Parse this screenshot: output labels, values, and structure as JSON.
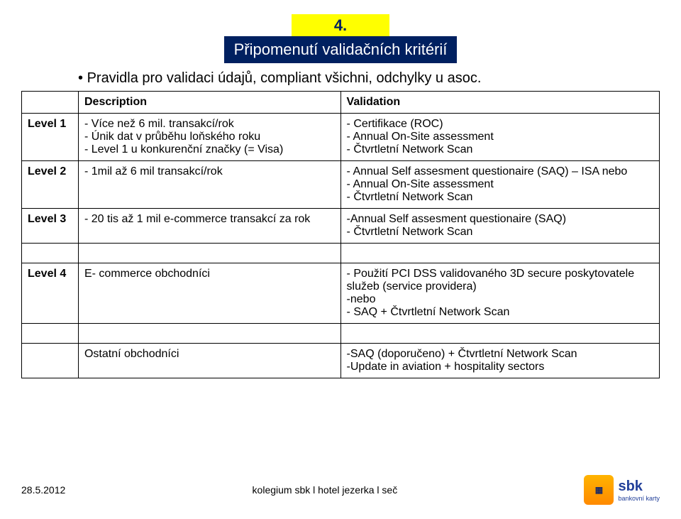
{
  "header": {
    "number": "4.",
    "subtitle": "Připomenutí validačních kritérií",
    "bullet": "Pravidla pro validaci údajů, compliant všichni, odchylky u asoc."
  },
  "table": {
    "headers": {
      "c1": "",
      "c2": "Description",
      "c3": "Validation"
    },
    "rows": [
      {
        "level": "Level 1",
        "desc": "- Více než 6 mil. transakcí/rok\n- Únik dat v průběhu loňského roku\n- Level 1 u konkurenční značky (= Visa)",
        "val": "- Certifikace (ROC)\n- Annual On-Site assessment\n- Čtvrtletní Network Scan"
      },
      {
        "level": "Level 2",
        "desc": "- 1mil až 6 mil transakcí/rok",
        "val": "- Annual Self assesment questionaire (SAQ) – ISA nebo\n- Annual On-Site assessment\n- Čtvrtletní Network Scan"
      },
      {
        "level": "Level 3",
        "desc": "- 20 tis až 1 mil e-commerce transakcí za rok",
        "val": "-Annual Self assesment questionaire (SAQ)\n- Čtvrtletní Network Scan"
      },
      {
        "level": "Level 4",
        "desc": "E- commerce obchodníci",
        "val": "- Použití PCI DSS validovaného 3D secure poskytovatele služeb (service providera)\n-nebo\n- SAQ + Čtvrtletní Network Scan"
      },
      {
        "level": "",
        "desc": "Ostatní obchodníci",
        "val": "-SAQ (doporučeno) + Čtvrtletní Network Scan\n-Update in aviation + hospitality sectors"
      }
    ]
  },
  "footer": {
    "date": "28.5.2012",
    "center": "kolegium sbk l hotel jezerka l seč",
    "logo_main": "sbk",
    "logo_sub": "bankovní karty"
  },
  "colors": {
    "yellow": "#ffff00",
    "darkblue": "#002060",
    "white": "#ffffff",
    "black": "#000000"
  }
}
